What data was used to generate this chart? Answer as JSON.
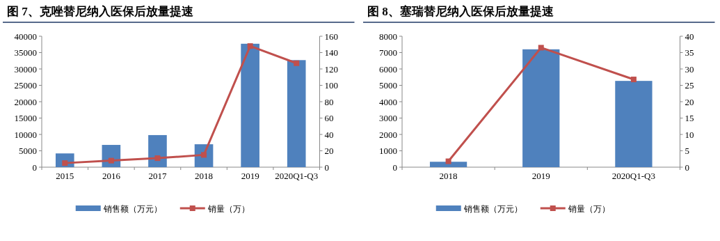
{
  "chart_data": [
    {
      "type": "bar",
      "title": "图 7、克唑替尼纳入医保后放量提速",
      "categories": [
        "2015",
        "2016",
        "2017",
        "2018",
        "2019",
        "2020Q1-Q3"
      ],
      "ylim": [
        0,
        40000
      ],
      "yticks": [
        0,
        5000,
        10000,
        15000,
        20000,
        25000,
        30000,
        35000,
        40000
      ],
      "y2lim": [
        0,
        160
      ],
      "y2ticks": [
        0,
        20,
        40,
        60,
        80,
        100,
        120,
        140,
        160
      ],
      "legend": "bottom",
      "marker": "square",
      "series": [
        {
          "name": "销售额（万元）",
          "color": "#4f81bd",
          "values": [
            4200,
            6800,
            9800,
            7000,
            37700,
            32700
          ]
        },
        {
          "name": "销量（万）",
          "type": "line",
          "axis": "y2",
          "color": "#c0504d",
          "values": [
            5,
            8,
            11,
            15,
            148,
            127
          ]
        }
      ]
    },
    {
      "type": "bar",
      "title": "图 8、塞瑞替尼纳入医保后放量提速",
      "categories": [
        "2018",
        "2019",
        "2020Q1-Q3"
      ],
      "ylim": [
        0,
        8000
      ],
      "yticks": [
        0,
        1000,
        2000,
        3000,
        4000,
        5000,
        6000,
        7000,
        8000
      ],
      "y2lim": [
        0,
        40
      ],
      "y2ticks": [
        0,
        5,
        10,
        15,
        20,
        25,
        30,
        35,
        40
      ],
      "legend": "bottom",
      "marker": "square",
      "series": [
        {
          "name": "销售额（万元）",
          "color": "#4f81bd",
          "values": [
            330,
            7200,
            5270
          ]
        },
        {
          "name": "销量（万）",
          "type": "line",
          "axis": "y2",
          "color": "#c0504d",
          "values": [
            1.8,
            36.5,
            26.8
          ]
        }
      ]
    }
  ]
}
